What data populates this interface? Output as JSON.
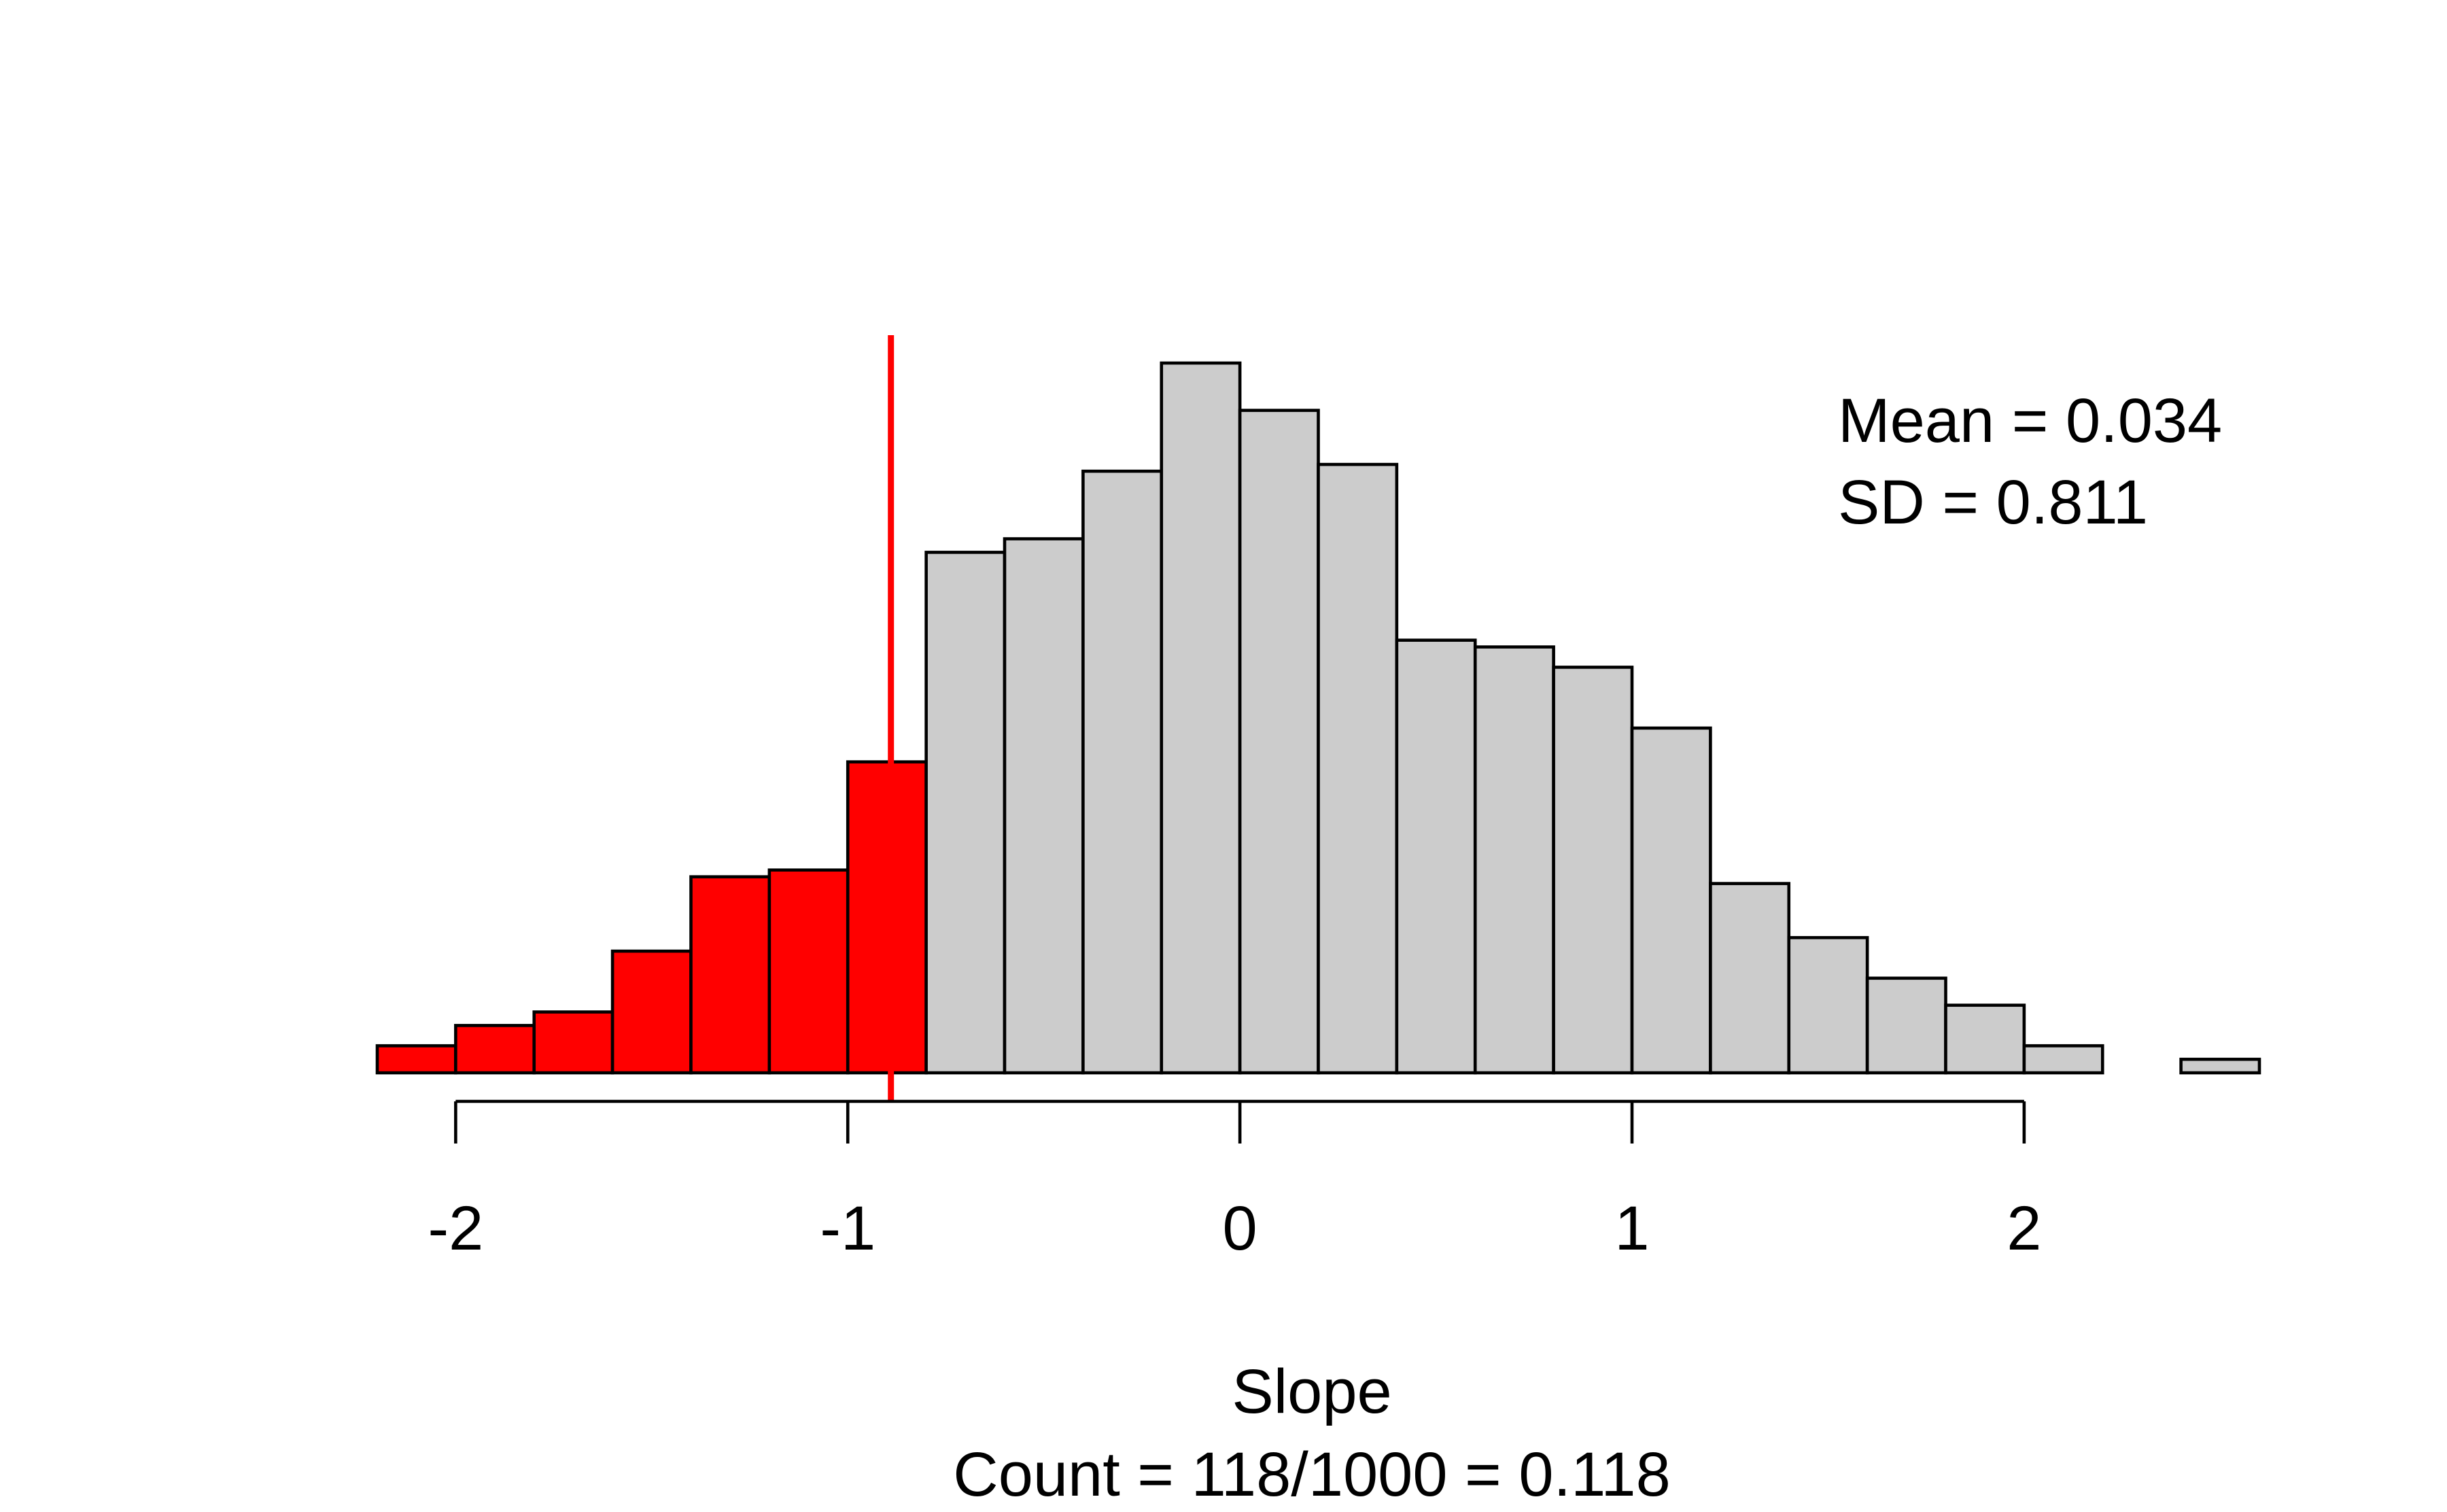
{
  "chart_data": {
    "type": "bar",
    "subtype": "histogram",
    "bin_edges": [
      -2.2,
      -2.0,
      -1.8,
      -1.6,
      -1.4,
      -1.2,
      -1.0,
      -0.8,
      -0.6,
      -0.4,
      -0.2,
      0.0,
      0.2,
      0.4,
      0.6,
      0.8,
      1.0,
      1.2,
      1.4,
      1.6,
      1.8,
      2.0,
      2.2,
      2.4,
      2.6
    ],
    "counts": [
      4,
      7,
      9,
      18,
      29,
      30,
      46,
      77,
      79,
      89,
      105,
      98,
      90,
      64,
      63,
      60,
      51,
      28,
      20,
      14,
      10,
      4,
      0,
      2
    ],
    "highlighted_bins": 7,
    "highlight_color": "#ff0000",
    "bar_color": "#cccccc",
    "cutoff": -0.89,
    "cutoff_color": "#ff0000",
    "xlim": [
      -2.2,
      2.6
    ],
    "ylim": [
      0,
      105
    ],
    "x_ticks": [
      -2,
      -1,
      0,
      1,
      2
    ],
    "x_tick_labels": [
      "-2",
      "-1",
      "0",
      "1",
      "2"
    ],
    "xlabel": "Slope",
    "title": "",
    "ylabel": "",
    "grid": false,
    "annotations": {
      "mean": "Mean = 0.034",
      "sd": "SD = 0.811",
      "count": "Count = 118/1000 = 0.118"
    }
  }
}
